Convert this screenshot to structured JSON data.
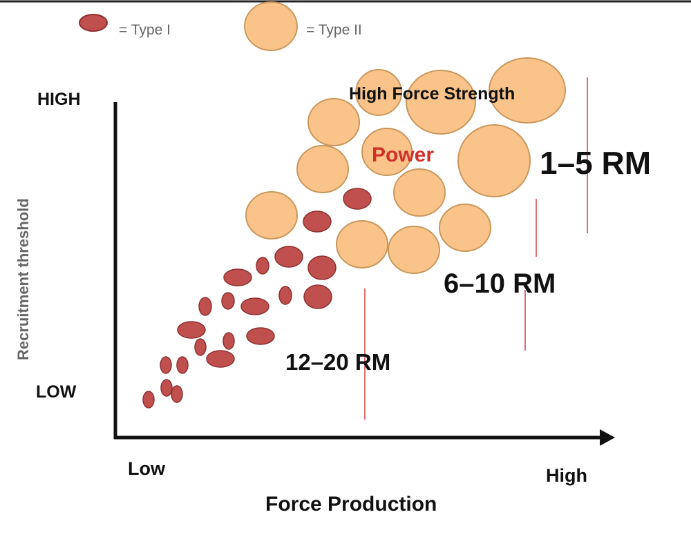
{
  "legend": {
    "type_one_label": "= Type I",
    "type_two_label": "= Type II"
  },
  "axes": {
    "y_title": "Recruitment  threshold",
    "y_high": "HIGH",
    "y_low": "LOW",
    "x_title": "Force Production",
    "x_low": "Low",
    "x_high": "High"
  },
  "annotations": {
    "high_force": "High Force Strength",
    "power": "Power",
    "rm_1_5": "1–5 RM",
    "rm_6_10": "6–10 RM",
    "rm_12_20": "12–20 RM"
  },
  "colors": {
    "type_one_fill": "#c0504d",
    "type_one_stroke": "#8e2f2f",
    "type_two_fill": "#f9c38a",
    "type_two_stroke": "#c9975c",
    "divider": "#e07070",
    "power_text": "#d0302a",
    "text": "#111111"
  }
}
